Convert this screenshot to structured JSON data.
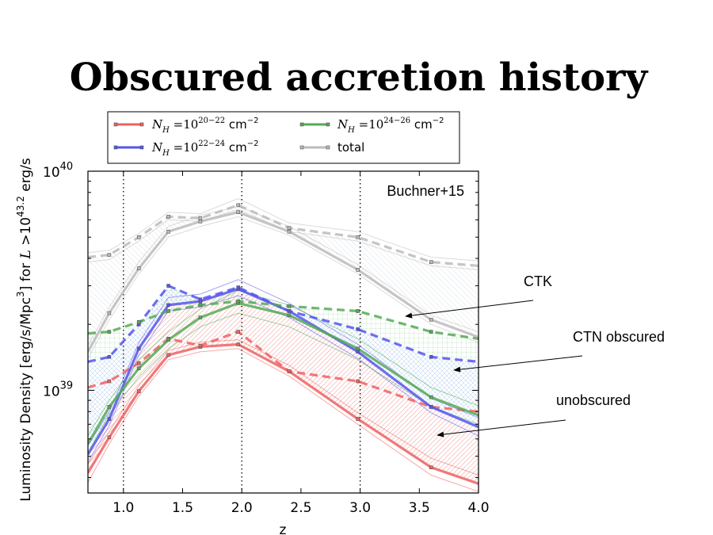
{
  "slide": {
    "title": "Obscured accretion history"
  },
  "chart_data": {
    "type": "line",
    "title": "",
    "xlabel": "z",
    "ylabel": "Luminosity Density [erg/s/Mpc³] for L >10⁴³·² erg/s",
    "ylabel_parts": {
      "prefix": "Luminosity Density [erg/s/Mpc",
      "cube": "3",
      "mid": "] for ",
      "L": "L",
      "gt": " >10",
      "exp": "43.2",
      "suffix": " erg/s"
    },
    "xlim": [
      0.7,
      4.0
    ],
    "ylim": [
      3.4e+38,
      1e+40
    ],
    "yscale": "log",
    "x_ticks": [
      "1.0",
      "1.5",
      "2.0",
      "2.5",
      "3.0",
      "3.5",
      "4.0"
    ],
    "y_ticks": [
      {
        "base": "10",
        "exp": "39",
        "value": 1e+39
      },
      {
        "base": "10",
        "exp": "40",
        "value": 1e+40
      }
    ],
    "vertical_lines": [
      1.0,
      2.0,
      3.0
    ],
    "legend": {
      "position": "top",
      "entries": [
        {
          "id": "s2022",
          "label_base": "N",
          "label_sub": "H",
          "label_eq": " =10",
          "label_exp": "20−22",
          "label_unit": " cm",
          "label_unit_exp": "−2",
          "color": "#f06060"
        },
        {
          "id": "s2224",
          "label_base": "N",
          "label_sub": "H",
          "label_eq": " =10",
          "label_exp": "22−24",
          "label_unit": " cm",
          "label_unit_exp": "−2",
          "color": "#5555ee"
        },
        {
          "id": "s2426",
          "label_base": "N",
          "label_sub": "H",
          "label_eq": " =10",
          "label_exp": "24−26",
          "label_unit": " cm",
          "label_unit_exp": "−2",
          "color": "#55aa55"
        },
        {
          "id": "stotal",
          "label_text": "total",
          "color": "#bbbbbb"
        }
      ]
    },
    "annotations": {
      "source": "Buchner+15",
      "ctk": {
        "text": "CTK",
        "point_to": [
          3.38,
          2e+39
        ]
      },
      "ctn": {
        "text": "CTN obscured",
        "point_to": [
          3.78,
          1.15e+39
        ]
      },
      "unobs": {
        "text": "unobscured",
        "point_to": [
          3.65,
          5.8e+38
        ]
      }
    },
    "series": [
      {
        "name": "N_H = 10^20-22 cm^-2",
        "color": "#f06060",
        "style": "solid",
        "x": [
          0.7,
          0.88,
          1.13,
          1.38,
          1.65,
          1.97,
          2.4,
          2.98,
          3.6,
          4.0
        ],
        "y": [
          4.2e+38,
          6.1e+38,
          9.9e+38,
          1.45e+39,
          1.58e+39,
          1.62e+39,
          1.22e+39,
          7.4e+38,
          4.45e+38,
          3.75e+38
        ],
        "band": [
          [
            3.8e+38,
            4.6e+38
          ],
          [
            5.7e+38,
            6.5e+38
          ],
          [
            9.4e+38,
            1.05e+39
          ],
          [
            1.38e+39,
            1.52e+39
          ],
          [
            1.5e+39,
            1.66e+39
          ],
          [
            1.55e+39,
            1.7e+39
          ],
          [
            1.16e+39,
            1.3e+39
          ],
          [
            7e+38,
            7.9e+38
          ],
          [
            4.1e+38,
            4.9e+38
          ],
          [
            3.45e+38,
            4.1e+38
          ]
        ]
      },
      {
        "name": "N_H = 10^20-22 cm^-2 (dashed)",
        "color": "#f06060",
        "style": "dashed",
        "x": [
          0.7,
          0.88,
          1.13,
          1.38,
          1.65,
          1.97,
          2.4,
          2.98,
          3.6,
          4.0
        ],
        "y": [
          1.03e+39,
          1.1e+39,
          1.33e+39,
          1.72e+39,
          1.6e+39,
          1.85e+39,
          1.22e+39,
          1.1e+39,
          8.4e+38,
          8e+38
        ]
      },
      {
        "name": "N_H = 10^22-24 cm^-2",
        "color": "#5555ee",
        "style": "solid",
        "x": [
          0.7,
          0.88,
          1.13,
          1.38,
          1.65,
          1.97,
          2.4,
          2.98,
          3.6,
          4.0
        ],
        "y": [
          5.1e+38,
          7.4e+38,
          1.55e+39,
          2.45e+39,
          2.55e+39,
          2.9e+39,
          2.3e+39,
          1.5e+39,
          8.4e+38,
          6.8e+38
        ],
        "band": [
          [
            4.7e+38,
            5.6e+38
          ],
          [
            6.9e+38,
            8e+38
          ],
          [
            1.45e+39,
            1.65e+39
          ],
          [
            2.3e+39,
            2.65e+39
          ],
          [
            2.4e+39,
            2.75e+39
          ],
          [
            2.7e+39,
            3.2e+39
          ],
          [
            2.15e+39,
            2.5e+39
          ],
          [
            1.4e+39,
            1.62e+39
          ],
          [
            7.9e+38,
            9.2e+38
          ],
          [
            6.2e+38,
            7.5e+38
          ]
        ]
      },
      {
        "name": "N_H = 10^22-24 cm^-2 (dashed)",
        "color": "#5555ee",
        "style": "dashed",
        "x": [
          0.7,
          0.88,
          1.13,
          1.38,
          1.65,
          1.97,
          2.4,
          2.98,
          3.6,
          4.0
        ],
        "y": [
          1.35e+39,
          1.42e+39,
          2e+39,
          3e+39,
          2.6e+39,
          2.95e+39,
          2.3e+39,
          1.9e+39,
          1.42e+39,
          1.35e+39
        ]
      },
      {
        "name": "N_H = 10^24-26 cm^-2",
        "color": "#55aa55",
        "style": "solid",
        "x": [
          0.7,
          0.88,
          1.13,
          1.38,
          1.65,
          1.97,
          2.4,
          2.98,
          3.6,
          4.0
        ],
        "y": [
          5.7e+38,
          8.4e+38,
          1.26e+39,
          1.7e+39,
          2.15e+39,
          2.5e+39,
          2.2e+39,
          1.55e+39,
          9.3e+38,
          7.7e+38
        ],
        "band": [
          [
            5.2e+38,
            6.2e+38
          ],
          [
            7.8e+38,
            9e+38
          ],
          [
            1.15e+39,
            1.38e+39
          ],
          [
            1.55e+39,
            1.85e+39
          ],
          [
            1.95e+39,
            2.35e+39
          ],
          [
            2.25e+39,
            2.85e+39
          ],
          [
            1.95e+39,
            2.45e+39
          ],
          [
            1.38e+39,
            1.72e+39
          ],
          [
            8.4e+38,
            1.03e+39
          ],
          [
            7e+38,
            8.5e+38
          ]
        ]
      },
      {
        "name": "N_H = 10^24-26 cm^-2 (dashed)",
        "color": "#55aa55",
        "style": "dashed",
        "x": [
          0.7,
          0.88,
          1.13,
          1.38,
          1.65,
          1.97,
          2.4,
          2.98,
          3.6,
          4.0
        ],
        "y": [
          1.82e+39,
          1.85e+39,
          2.05e+39,
          2.3e+39,
          2.45e+39,
          2.55e+39,
          2.42e+39,
          2.3e+39,
          1.85e+39,
          1.72e+39
        ]
      },
      {
        "name": "total",
        "color": "#bbbbbb",
        "style": "solid",
        "x": [
          0.7,
          0.88,
          1.13,
          1.38,
          1.65,
          1.97,
          2.4,
          2.98,
          3.6,
          4.0
        ],
        "y": [
          1.5e+39,
          2.25e+39,
          3.6e+39,
          5.3e+39,
          5.9e+39,
          6.5e+39,
          5.3e+39,
          3.55e+39,
          2.1e+39,
          1.75e+39
        ],
        "band": [
          [
            1.4e+39,
            1.6e+39
          ],
          [
            2.1e+39,
            2.4e+39
          ],
          [
            3.4e+39,
            3.85e+39
          ],
          [
            5e+39,
            5.6e+39
          ],
          [
            5.6e+39,
            6.3e+39
          ],
          [
            6.2e+39,
            6.9e+39
          ],
          [
            5.1e+39,
            5.6e+39
          ],
          [
            3.4e+39,
            3.75e+39
          ],
          [
            2e+39,
            2.2e+39
          ],
          [
            1.65e+39,
            1.85e+39
          ]
        ]
      },
      {
        "name": "total (dashed)",
        "color": "#bbbbbb",
        "style": "dashed",
        "x": [
          0.7,
          0.88,
          1.13,
          1.38,
          1.65,
          1.97,
          2.4,
          2.98,
          3.6,
          4.0
        ],
        "y": [
          4.05e+39,
          4.15e+39,
          5e+39,
          6.2e+39,
          6.1e+39,
          7e+39,
          5.5e+39,
          5e+39,
          3.85e+39,
          3.7e+39
        ],
        "band": [
          [
            3.85e+39,
            4.25e+39
          ],
          [
            3.95e+39,
            4.35e+39
          ],
          [
            4.8e+39,
            5.2e+39
          ],
          [
            6e+39,
            6.5e+39
          ],
          [
            5.9e+39,
            6.4e+39
          ],
          [
            6.7e+39,
            7.5e+39
          ],
          [
            5.3e+39,
            5.8e+39
          ],
          [
            4.8e+39,
            5.3e+39
          ],
          [
            3.7e+39,
            4.05e+39
          ],
          [
            3.55e+39,
            3.9e+39
          ]
        ]
      }
    ]
  }
}
